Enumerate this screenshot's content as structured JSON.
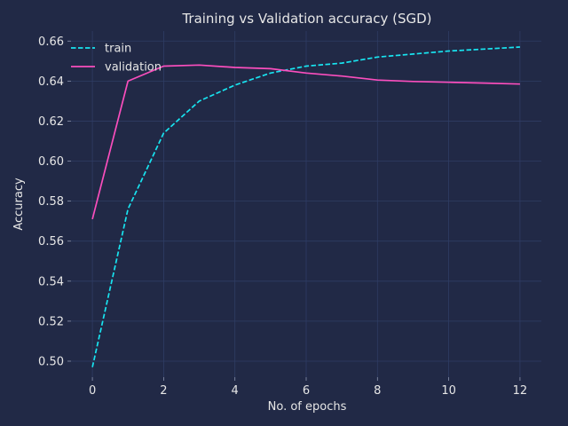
{
  "colors": {
    "background": "#212946",
    "grid": "#2f3d64",
    "text": "#e6e6e6",
    "train": "#18e4f0",
    "validation": "#fa4ebd"
  },
  "chart_data": {
    "type": "line",
    "title": "Training vs Validation accuracy (SGD)",
    "xlabel": "No. of epochs",
    "ylabel": "Accuracy",
    "xlim": [
      -0.6,
      12.6
    ],
    "ylim": [
      0.492,
      0.665
    ],
    "xticks": [
      0,
      2,
      4,
      6,
      8,
      10,
      12
    ],
    "yticks": [
      0.5,
      0.52,
      0.54,
      0.56,
      0.58,
      0.6,
      0.62,
      0.64,
      0.66
    ],
    "grid": true,
    "legend_position": "upper-left",
    "x": [
      0,
      1,
      2,
      3,
      4,
      5,
      6,
      7,
      8,
      9,
      10,
      11,
      12
    ],
    "series": [
      {
        "name": "train",
        "style": "dashed",
        "color": "#18e4f0",
        "values": [
          0.497,
          0.576,
          0.614,
          0.63,
          0.638,
          0.644,
          0.6475,
          0.649,
          0.652,
          0.6535,
          0.655,
          0.656,
          0.657
        ]
      },
      {
        "name": "validation",
        "style": "solid",
        "color": "#fa4ebd",
        "values": [
          0.571,
          0.64,
          0.6475,
          0.648,
          0.6468,
          0.6462,
          0.644,
          0.6425,
          0.6405,
          0.6398,
          0.6394,
          0.639,
          0.6385
        ]
      }
    ]
  }
}
